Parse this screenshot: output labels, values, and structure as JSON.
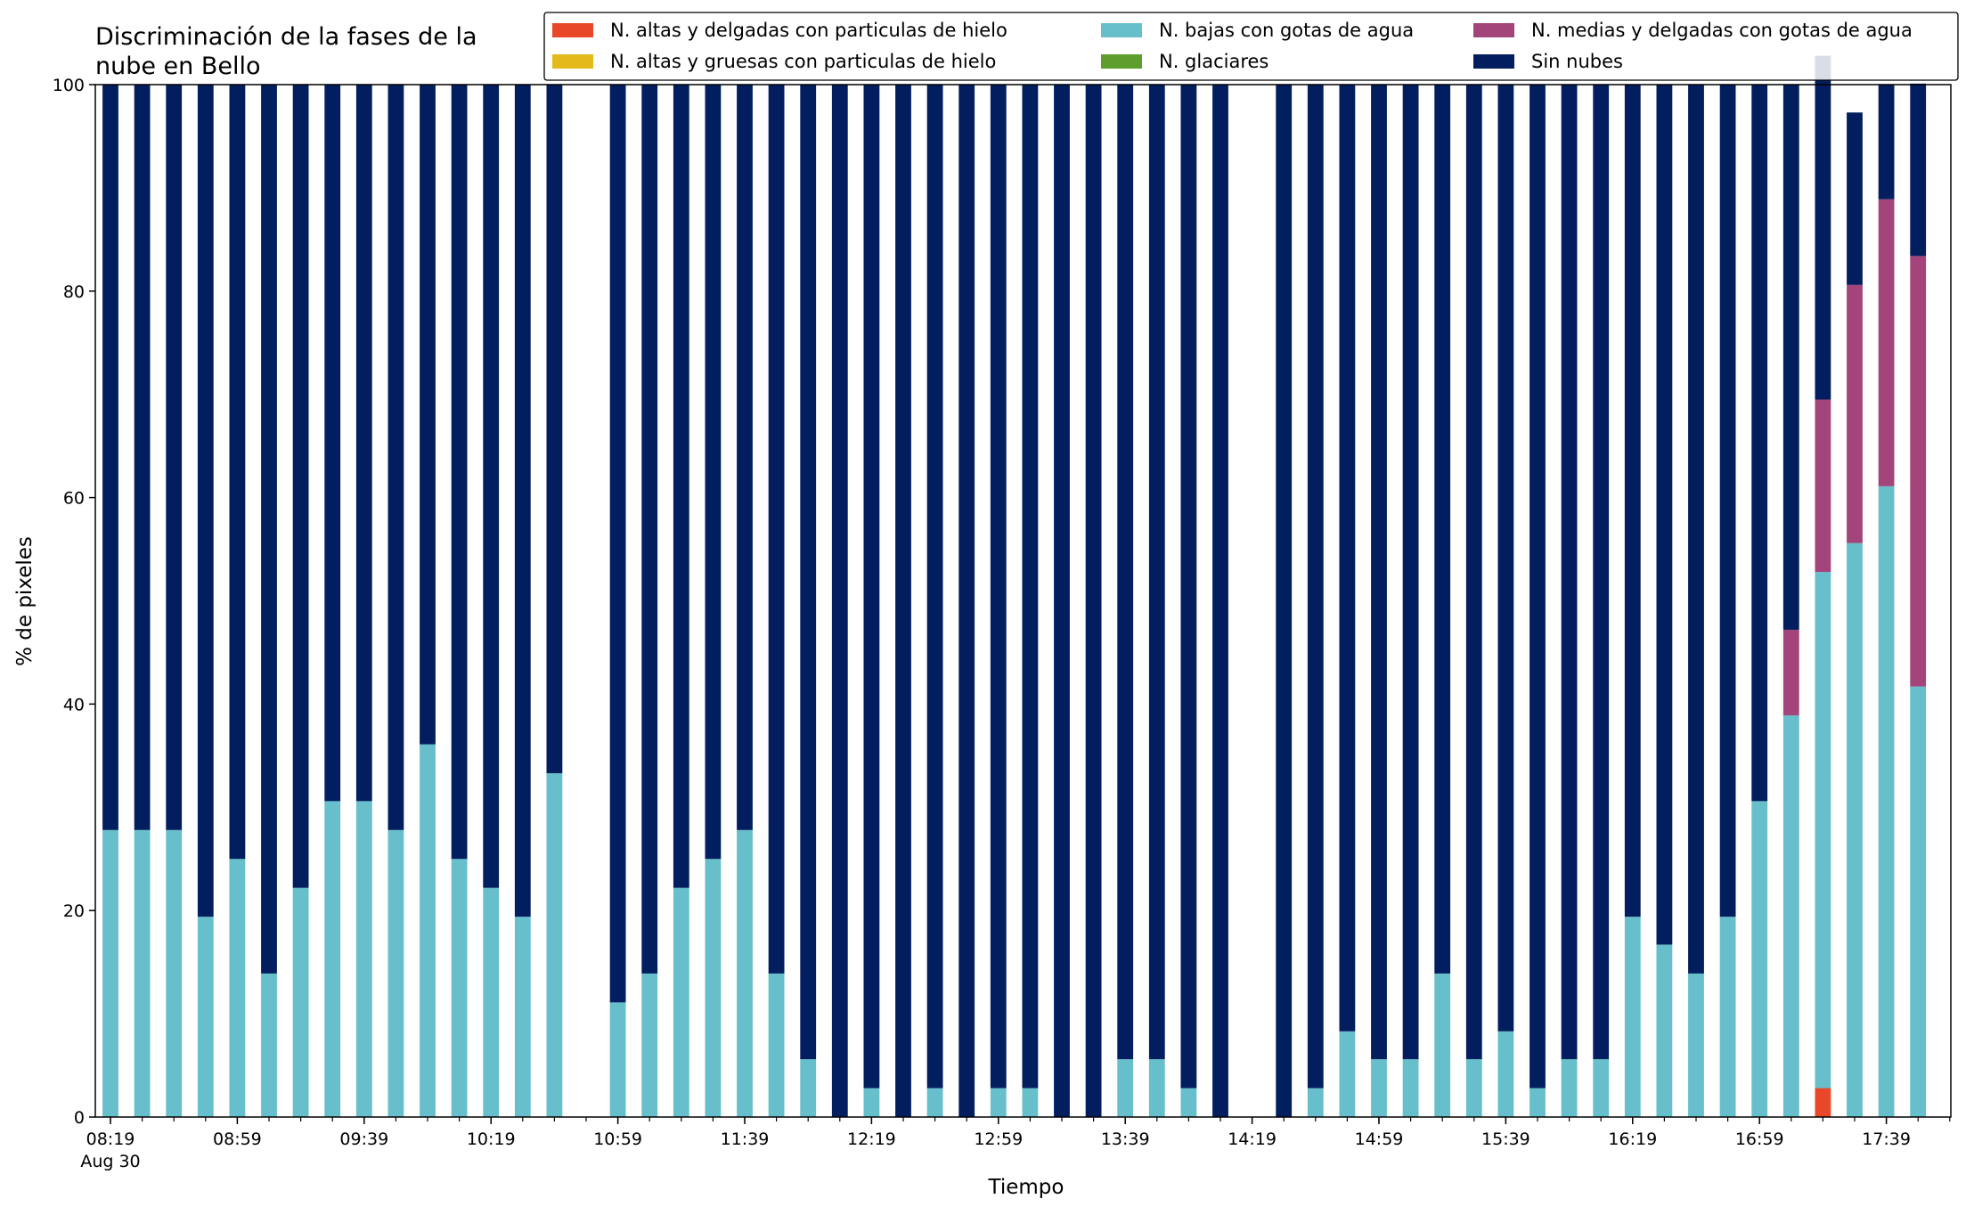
{
  "chart_data": {
    "type": "bar",
    "stacked": true,
    "title": "Discriminación de la fases de la\nnube en Bello",
    "title_lines": [
      "Discriminación de la fases de la",
      "nube en Bello"
    ],
    "xlabel": "Tiempo",
    "ylabel": "% de pixeles",
    "ylim": [
      0,
      100
    ],
    "y_ticks": [
      0,
      20,
      40,
      60,
      80,
      100
    ],
    "x_tick_labels": [
      "08:19",
      "08:59",
      "09:39",
      "10:19",
      "10:59",
      "11:39",
      "12:19",
      "12:59",
      "13:39",
      "14:19",
      "14:59",
      "15:39",
      "16:19",
      "16:59",
      "17:39"
    ],
    "x_tick_sublabel": "Aug 30",
    "grid": false,
    "legend_position": "top-right",
    "slot_interval_minutes": 10,
    "categories": [
      "08:19",
      "08:29",
      "08:39",
      "08:49",
      "08:59",
      "09:09",
      "09:19",
      "09:29",
      "09:39",
      "09:49",
      "09:59",
      "10:09",
      "10:19",
      "10:29",
      "10:39",
      "10:49",
      "10:59",
      "11:09",
      "11:19",
      "11:29",
      "11:39",
      "11:49",
      "11:59",
      "12:09",
      "12:19",
      "12:29",
      "12:39",
      "12:49",
      "12:59",
      "13:09",
      "13:19",
      "13:29",
      "13:39",
      "13:49",
      "13:59",
      "14:09",
      "14:19",
      "14:29",
      "14:39",
      "14:49",
      "14:59",
      "15:09",
      "15:19",
      "15:29",
      "15:39",
      "15:49",
      "15:59",
      "16:09",
      "16:19",
      "16:29",
      "16:39",
      "16:49",
      "16:59",
      "17:09",
      "17:19",
      "17:29",
      "17:39",
      "17:49"
    ],
    "present": [
      1,
      1,
      1,
      1,
      1,
      1,
      1,
      1,
      1,
      1,
      1,
      1,
      1,
      1,
      1,
      0,
      1,
      1,
      1,
      1,
      1,
      1,
      1,
      1,
      1,
      1,
      1,
      1,
      1,
      1,
      1,
      1,
      1,
      1,
      1,
      1,
      0,
      1,
      1,
      1,
      1,
      1,
      1,
      1,
      1,
      1,
      1,
      1,
      1,
      1,
      1,
      1,
      1,
      1,
      1,
      1,
      1,
      1
    ],
    "series": [
      {
        "name": "N. altas y delgadas con particulas de hielo",
        "color": "#e8472a",
        "values": [
          0,
          0,
          0,
          0,
          0,
          0,
          0,
          0,
          0,
          0,
          0,
          0,
          0,
          0,
          0,
          0,
          0,
          0,
          0,
          0,
          0,
          0,
          0,
          0,
          0,
          0,
          0,
          0,
          0,
          0,
          0,
          0,
          0,
          0,
          0,
          0,
          0,
          0,
          0,
          0,
          0,
          0,
          0,
          0,
          0,
          0,
          0,
          0,
          0,
          0,
          0,
          0,
          0,
          0,
          2.8,
          0,
          0,
          0
        ]
      },
      {
        "name": "N. altas y gruesas con particulas de hielo",
        "color": "#e3b91c",
        "values": [
          0,
          0,
          0,
          0,
          0,
          0,
          0,
          0,
          0,
          0,
          0,
          0,
          0,
          0,
          0,
          0,
          0,
          0,
          0,
          0,
          0,
          0,
          0,
          0,
          0,
          0,
          0,
          0,
          0,
          0,
          0,
          0,
          0,
          0,
          0,
          0,
          0,
          0,
          0,
          0,
          0,
          0,
          0,
          0,
          0,
          0,
          0,
          0,
          0,
          0,
          0,
          0,
          0,
          0,
          0,
          0,
          0,
          0
        ]
      },
      {
        "name": "N. bajas con gotas de agua",
        "color": "#66bfcb",
        "values": [
          27.8,
          27.8,
          27.8,
          19.4,
          25.0,
          13.9,
          22.2,
          30.6,
          30.6,
          27.8,
          36.1,
          25.0,
          22.2,
          19.4,
          33.3,
          0,
          11.1,
          13.9,
          22.2,
          25.0,
          27.8,
          13.9,
          5.6,
          0,
          2.8,
          0,
          2.8,
          0,
          2.8,
          2.8,
          0,
          0,
          5.6,
          5.6,
          2.8,
          0,
          0,
          0,
          2.8,
          8.3,
          5.6,
          5.6,
          13.9,
          5.6,
          8.3,
          2.8,
          5.6,
          5.6,
          19.4,
          16.7,
          13.9,
          19.4,
          30.6,
          38.9,
          50.0,
          55.6,
          61.1,
          41.7
        ]
      },
      {
        "name": "N. glaciares",
        "color": "#5d9e2e",
        "values": [
          0,
          0,
          0,
          0,
          0,
          0,
          0,
          0,
          0,
          0,
          0,
          0,
          0,
          0,
          0,
          0,
          0,
          0,
          0,
          0,
          0,
          0,
          0,
          0,
          0,
          0,
          0,
          0,
          0,
          0,
          0,
          0,
          0,
          0,
          0,
          0,
          0,
          0,
          0,
          0,
          0,
          0,
          0,
          0,
          0,
          0,
          0,
          0,
          0,
          0,
          0,
          0,
          0,
          0,
          0,
          0,
          0,
          0
        ]
      },
      {
        "name": "N. medias y delgadas con gotas de agua",
        "color": "#a3447a",
        "values": [
          0,
          0,
          0,
          0,
          0,
          0,
          0,
          0,
          0,
          0,
          0,
          0,
          0,
          0,
          0,
          0,
          0,
          0,
          0,
          0,
          0,
          0,
          0,
          0,
          0,
          0,
          0,
          0,
          0,
          0,
          0,
          0,
          0,
          0,
          0,
          0,
          0,
          0,
          0,
          0,
          0,
          0,
          0,
          0,
          0,
          0,
          0,
          0,
          0,
          0,
          0,
          0,
          0,
          8.3,
          16.7,
          25.0,
          27.8,
          41.7
        ]
      },
      {
        "name": "Sin nubes",
        "color": "#021e5e",
        "values": [
          72.2,
          72.2,
          72.2,
          80.6,
          75.0,
          86.1,
          77.8,
          69.4,
          69.4,
          72.2,
          63.9,
          75.0,
          77.8,
          80.6,
          66.7,
          0,
          88.9,
          86.1,
          77.8,
          75.0,
          72.2,
          86.1,
          94.4,
          100,
          97.2,
          100,
          97.2,
          100,
          97.2,
          97.2,
          100,
          100,
          94.4,
          94.4,
          97.2,
          100,
          0,
          100,
          97.2,
          91.7,
          94.4,
          94.4,
          86.1,
          94.4,
          91.7,
          97.2,
          94.4,
          94.4,
          80.6,
          83.3,
          86.1,
          80.6,
          69.4,
          52.8,
          33.3,
          16.7,
          11.1,
          16.7
        ]
      }
    ]
  }
}
